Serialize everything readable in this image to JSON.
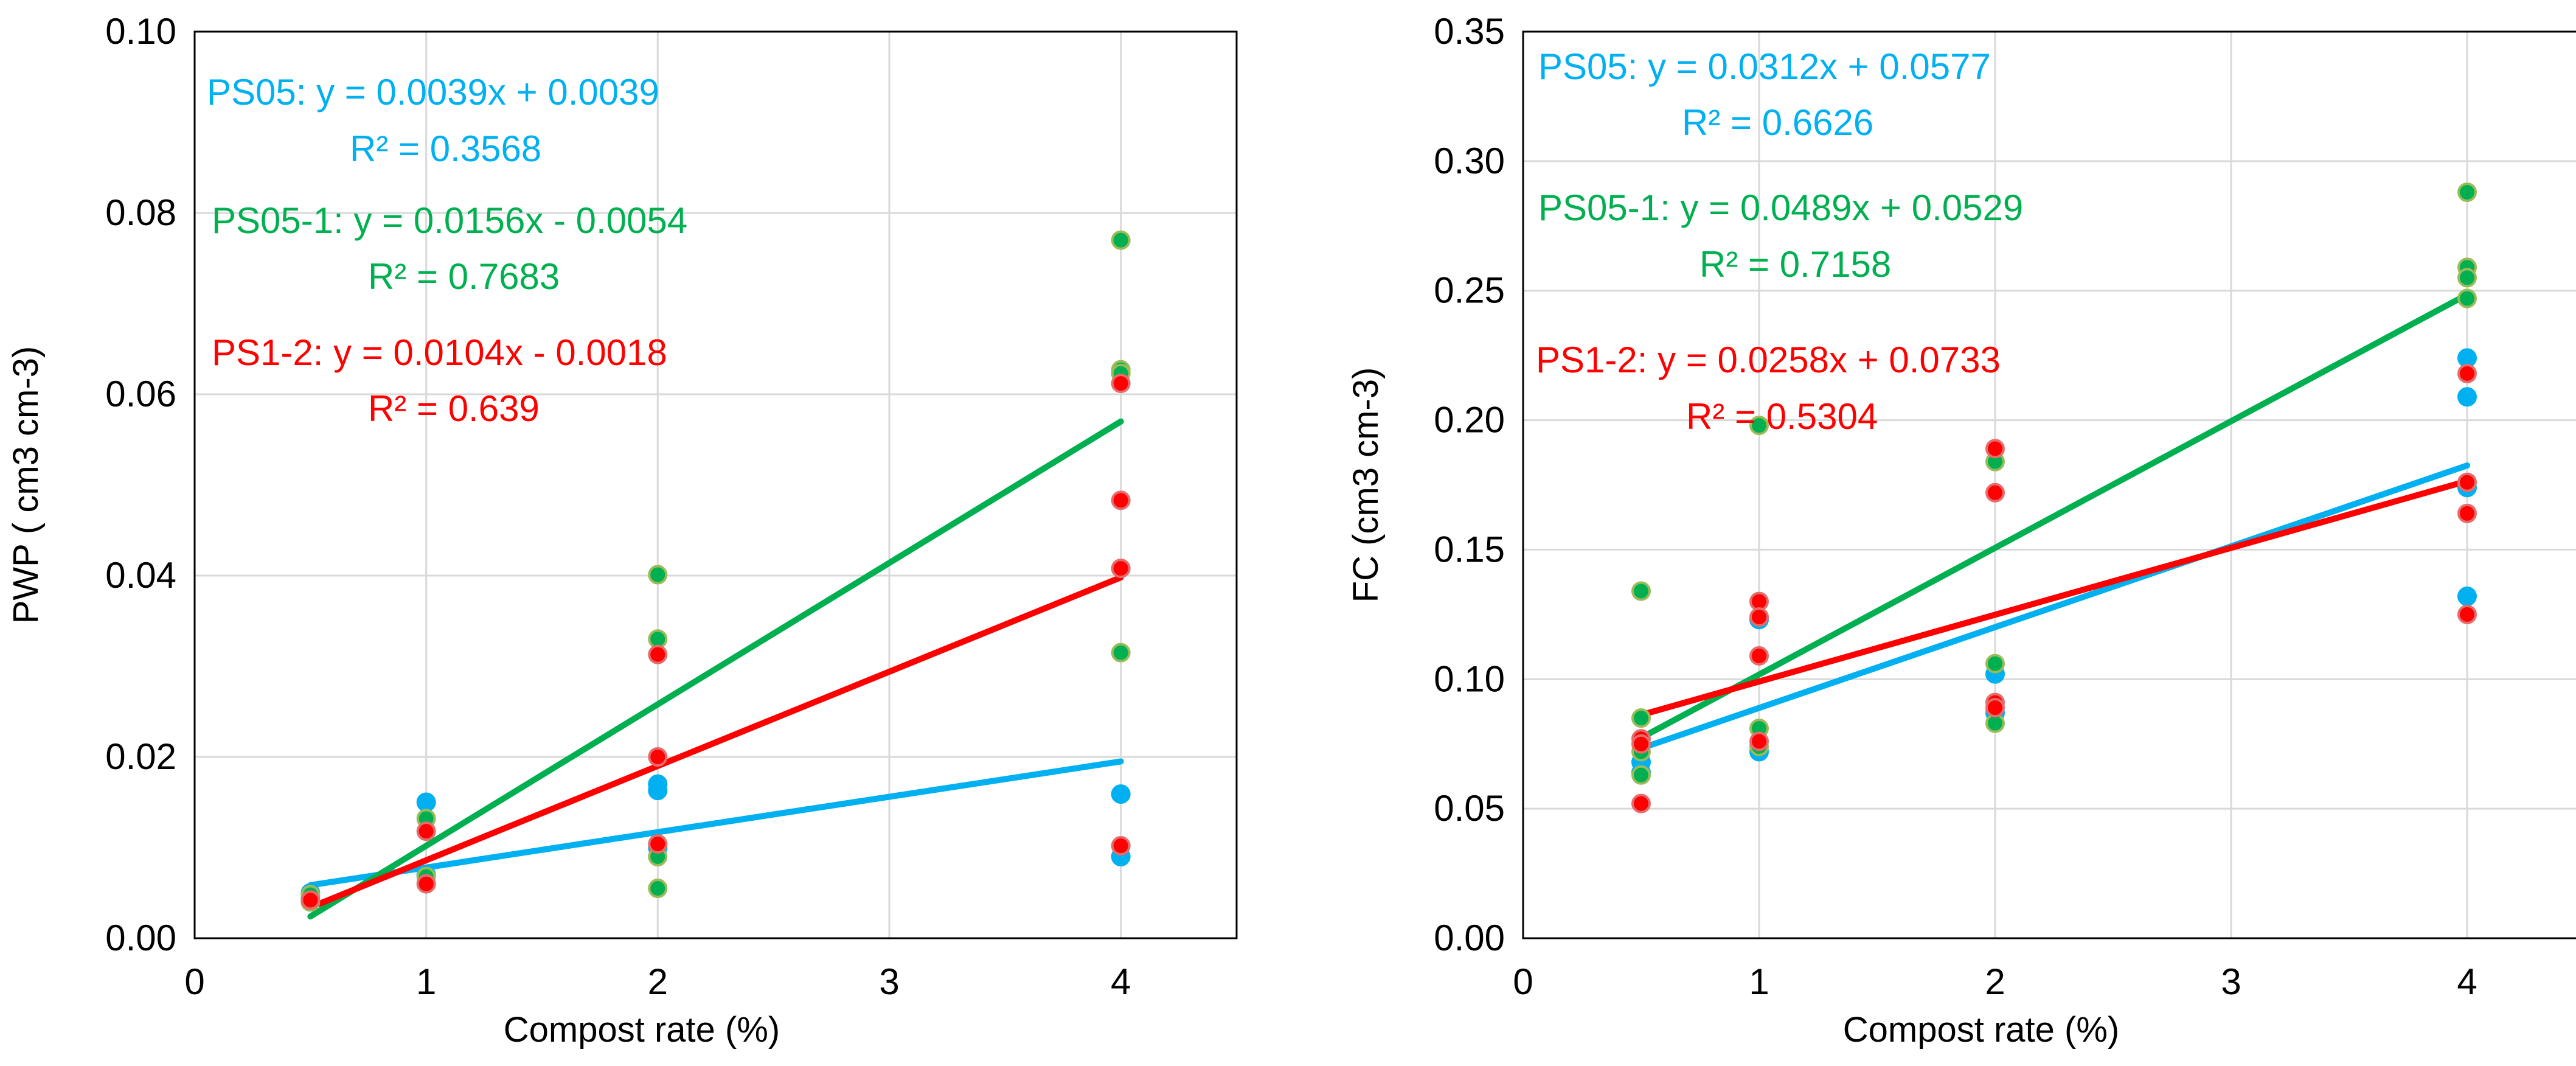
{
  "chart_data": [
    {
      "type": "scatter",
      "title": "",
      "xlabel": "Compost rate (%)",
      "ylabel": "PWP ( cm3 cm-3)",
      "xlim": [
        0,
        4.5
      ],
      "ylim": [
        0,
        0.1
      ],
      "xticks": [
        "0",
        "1",
        "2",
        "3",
        "4"
      ],
      "yticks": [
        "0.00",
        "0.02",
        "0.04",
        "0.06",
        "0.08",
        "0.10"
      ],
      "grid": true,
      "series": [
        {
          "name": "PS05",
          "color": "#00B0F0",
          "points": [
            [
              0.5,
              0.0045
            ],
            [
              0.5,
              0.005
            ],
            [
              1,
              0.015
            ],
            [
              1,
              0.007
            ],
            [
              2,
              0.017
            ],
            [
              2,
              0.0163
            ],
            [
              2,
              0.01
            ],
            [
              4,
              0.0159
            ],
            [
              4,
              0.009
            ]
          ],
          "equation": "PS05: y = 0.0039x + 0.0039",
          "r2": "R² = 0.3568",
          "slope": 0.0039,
          "intercept": 0.0039
        },
        {
          "name": "PS05-1",
          "color": "#00B050",
          "points": [
            [
              0.5,
              0.004
            ],
            [
              0.5,
              0.0048
            ],
            [
              1,
              0.0132
            ],
            [
              1,
              0.0068
            ],
            [
              2,
              0.0401
            ],
            [
              2,
              0.033
            ],
            [
              2,
              0.009
            ],
            [
              2,
              0.0055
            ],
            [
              4,
              0.077
            ],
            [
              4,
              0.0627
            ],
            [
              4,
              0.0623
            ],
            [
              4,
              0.0315
            ]
          ],
          "equation": "PS05-1: y = 0.0156x - 0.0054",
          "r2": "R² = 0.7683",
          "slope": 0.0156,
          "intercept": -0.0054
        },
        {
          "name": "PS1-2",
          "color": "#FF0000",
          "points": [
            [
              0.5,
              0.0042
            ],
            [
              1,
              0.0118
            ],
            [
              1,
              0.006
            ],
            [
              2,
              0.0313
            ],
            [
              2,
              0.02
            ],
            [
              2,
              0.0104
            ],
            [
              4,
              0.0612
            ],
            [
              4,
              0.0483
            ],
            [
              4,
              0.0408
            ],
            [
              4,
              0.0102
            ]
          ],
          "equation": "PS1-2: y = 0.0104x - 0.0018",
          "r2": "R² = 0.639",
          "slope": 0.0104,
          "intercept": -0.0018
        }
      ]
    },
    {
      "type": "scatter",
      "title": "",
      "xlabel": "Compost rate (%)",
      "ylabel": "FC (cm3 cm-3)",
      "xlim": [
        0,
        4.5
      ],
      "ylim": [
        0,
        0.35
      ],
      "xticks": [
        "0",
        "1",
        "2",
        "3",
        "4"
      ],
      "yticks": [
        "0.00",
        "0.05",
        "0.10",
        "0.15",
        "0.20",
        "0.25",
        "0.30",
        "0.35"
      ],
      "grid": true,
      "series": [
        {
          "name": "PS05",
          "color": "#00B0F0",
          "points": [
            [
              0.5,
              0.068
            ],
            [
              0.5,
              0.064
            ],
            [
              1,
              0.123
            ],
            [
              1,
              0.072
            ],
            [
              2,
              0.102
            ],
            [
              2,
              0.087
            ],
            [
              4,
              0.224
            ],
            [
              4,
              0.209
            ],
            [
              4,
              0.174
            ],
            [
              4,
              0.132
            ]
          ],
          "equation": "PS05: y = 0.0312x + 0.0577",
          "r2": "R² = 0.6626",
          "slope": 0.0312,
          "intercept": 0.0577
        },
        {
          "name": "PS05-1",
          "color": "#00B050",
          "points": [
            [
              0.5,
              0.134
            ],
            [
              0.5,
              0.085
            ],
            [
              0.5,
              0.072
            ],
            [
              0.5,
              0.063
            ],
            [
              1,
              0.198
            ],
            [
              1,
              0.081
            ],
            [
              1,
              0.074
            ],
            [
              2,
              0.184
            ],
            [
              2,
              0.106
            ],
            [
              2,
              0.083
            ],
            [
              4,
              0.288
            ],
            [
              4,
              0.259
            ],
            [
              4,
              0.255
            ],
            [
              4,
              0.247
            ]
          ],
          "equation": "PS05-1: y = 0.0489x + 0.0529",
          "r2": "R² = 0.7158",
          "slope": 0.0489,
          "intercept": 0.0529
        },
        {
          "name": "PS1-2",
          "color": "#FF0000",
          "points": [
            [
              0.5,
              0.077
            ],
            [
              0.5,
              0.075
            ],
            [
              0.5,
              0.052
            ],
            [
              1,
              0.13
            ],
            [
              1,
              0.124
            ],
            [
              1,
              0.109
            ],
            [
              1,
              0.076
            ],
            [
              2,
              0.189
            ],
            [
              2,
              0.172
            ],
            [
              2,
              0.091
            ],
            [
              2,
              0.089
            ],
            [
              4,
              0.218
            ],
            [
              4,
              0.176
            ],
            [
              4,
              0.164
            ],
            [
              4,
              0.125
            ]
          ],
          "equation": "PS1-2: y = 0.0258x + 0.0733",
          "r2": "R² = 0.5304",
          "slope": 0.0258,
          "intercept": 0.0733
        }
      ]
    }
  ]
}
